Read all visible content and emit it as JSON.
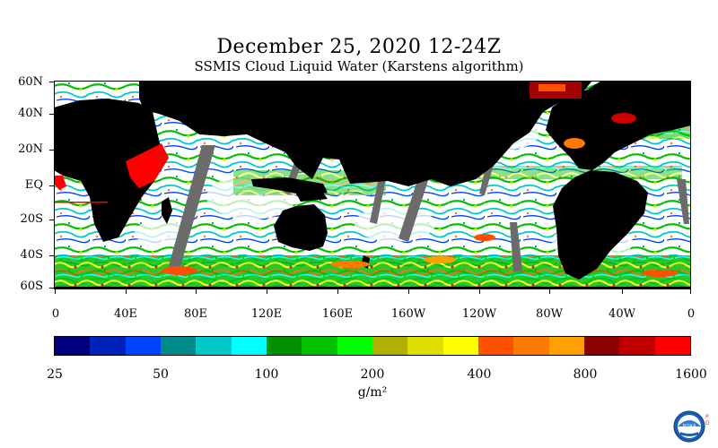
{
  "header": {
    "title": "December 25, 2020 12-24Z",
    "subtitle": "SSMIS Cloud Liquid Water (Karstens algorithm)"
  },
  "map": {
    "lat_labels": [
      "60N",
      "40N",
      "20N",
      "EQ",
      "20S",
      "40S",
      "60S"
    ],
    "lon_labels": [
      "0",
      "40E",
      "80E",
      "120E",
      "160E",
      "160W",
      "120W",
      "80W",
      "40W",
      "0"
    ],
    "land_color": "#000000",
    "no_data_color": "#6b6b6b",
    "ocean_clear_color": "#ffffff"
  },
  "colorbar": {
    "colors": [
      "#00007f",
      "#0022bb",
      "#0044ff",
      "#008b8b",
      "#00c8c8",
      "#00ffff",
      "#009000",
      "#00c000",
      "#00ff00",
      "#b0b000",
      "#dddd00",
      "#ffff00",
      "#ff5000",
      "#ff7800",
      "#ffa000",
      "#8b0000",
      "#c00000",
      "#ff0000"
    ],
    "tick_labels": [
      "25",
      "50",
      "100",
      "200",
      "400",
      "800",
      "1600"
    ],
    "unit": "g/m²"
  },
  "logo": {
    "text": "NOAA",
    "side_text": "P D"
  }
}
